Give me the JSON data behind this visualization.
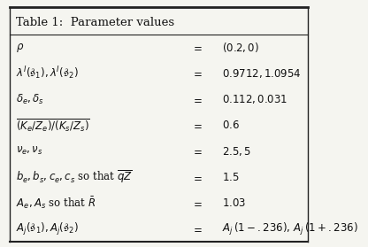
{
  "title": "Table 1:  Parameter values",
  "rows": [
    {
      "col1": "$\\rho$",
      "col2": "$=$",
      "col3": "$(0.2, 0)$"
    },
    {
      "col1": "$\\lambda^{I}(\\mathfrak{s}_1), \\lambda^{I}(\\mathfrak{s}_2)$",
      "col2": "$=$",
      "col3": "$0.9712, 1.0954$"
    },
    {
      "col1": "$\\delta_e, \\delta_s$",
      "col2": "$=$",
      "col3": "$0.112, 0.031$"
    },
    {
      "col1": "$\\overline{(K_e/Z_e)/(K_s/Z_s)}$",
      "col2": "$=$",
      "col3": "$0.6$"
    },
    {
      "col1": "$\\nu_e, \\nu_s$",
      "col2": "$=$",
      "col3": "$2.5, 5$"
    },
    {
      "col1": "$b_e, b_s, c_e, c_s$ so that $\\overline{qZ}$",
      "col2": "$=$",
      "col3": "$1.5$"
    },
    {
      "col1": "$A_e, A_s$ so that $\\bar{R}$",
      "col2": "$=$",
      "col3": "$1.03$"
    },
    {
      "col1": "$A_j(\\mathfrak{s}_1), A_j(\\mathfrak{s}_2)$",
      "col2": "$=$",
      "col3": "$A_j\\,(1-.236),\\,A_j\\,(1+.236)$"
    }
  ],
  "bg_color": "#f5f5f0",
  "border_color": "#222222",
  "text_color": "#111111",
  "figsize": [
    4.16,
    2.79
  ],
  "dpi": 100
}
